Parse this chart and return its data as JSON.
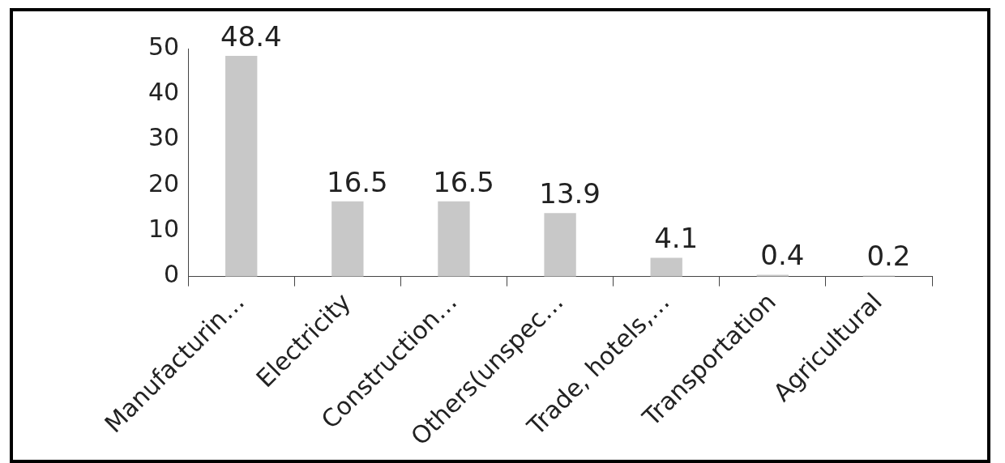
{
  "chart_data": {
    "type": "bar",
    "categories": [
      "Manufacturin…",
      "Electricity",
      "Construction…",
      "Others(unspec…",
      "Trade, hotels,…",
      "Transportation",
      "Agricultural"
    ],
    "values": [
      48.4,
      16.5,
      16.5,
      13.9,
      4.1,
      0.4,
      0.2
    ],
    "color": "#c8c8c8",
    "ylim": [
      0,
      50
    ],
    "yticks": [
      0,
      10,
      20,
      30,
      40,
      50
    ],
    "data_labels": true
  }
}
